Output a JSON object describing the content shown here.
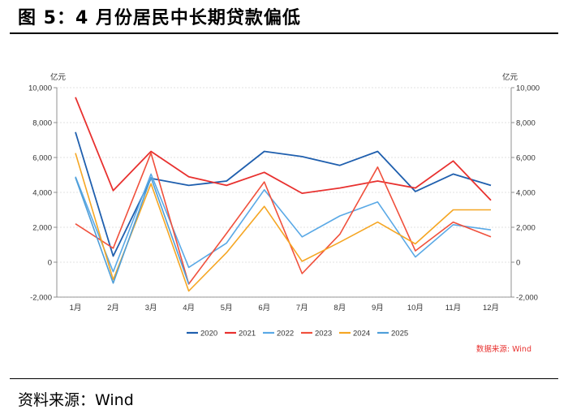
{
  "header": {
    "figure_label": "图 5：",
    "figure_title": "4 月份居民中长期贷款偏低"
  },
  "footer": {
    "source": "资料来源：Wind"
  },
  "chart_data": {
    "type": "line",
    "unit_left": "亿元",
    "unit_right": "亿元",
    "source_note": "数据来源: Wind",
    "categories": [
      "1月",
      "2月",
      "3月",
      "4月",
      "5月",
      "6月",
      "7月",
      "8月",
      "9月",
      "10月",
      "11月",
      "12月"
    ],
    "ylim": [
      -2000,
      10000
    ],
    "yticks": [
      -2000,
      0,
      2000,
      4000,
      6000,
      8000,
      10000
    ],
    "ytick_labels": [
      "-2,000",
      "0",
      "2,000",
      "4,000",
      "6,000",
      "8,000",
      "10,000"
    ],
    "grid": true,
    "legend_position": "bottom",
    "series": [
      {
        "name": "2020",
        "color": "#1f5fae",
        "values": [
          7450,
          350,
          4800,
          4400,
          4650,
          6350,
          6050,
          5550,
          6350,
          4050,
          5050,
          4400
        ]
      },
      {
        "name": "2021",
        "color": "#e8312f",
        "values": [
          9450,
          4100,
          6350,
          4900,
          4400,
          5150,
          3950,
          4250,
          4650,
          4250,
          5800,
          3550
        ]
      },
      {
        "name": "2022",
        "color": "#5aa9e6",
        "values": [
          4900,
          -550,
          5050,
          -300,
          1100,
          4150,
          1450,
          2650,
          3450,
          300,
          2150,
          1850
        ]
      },
      {
        "name": "2023",
        "color": "#f0503c",
        "values": [
          2200,
          800,
          6250,
          -1250,
          1650,
          4600,
          -650,
          1600,
          5450,
          650,
          2300,
          1450
        ]
      },
      {
        "name": "2024",
        "color": "#f5a623",
        "values": [
          6250,
          -1000,
          4500,
          -1650,
          550,
          3200,
          50,
          1150,
          2300,
          1050,
          3000,
          3000
        ]
      },
      {
        "name": "2025",
        "color": "#4f9fd9",
        "values": [
          4850,
          -1200,
          4850,
          -1250,
          null,
          null,
          null,
          null,
          null,
          null,
          null,
          null
        ]
      }
    ]
  }
}
